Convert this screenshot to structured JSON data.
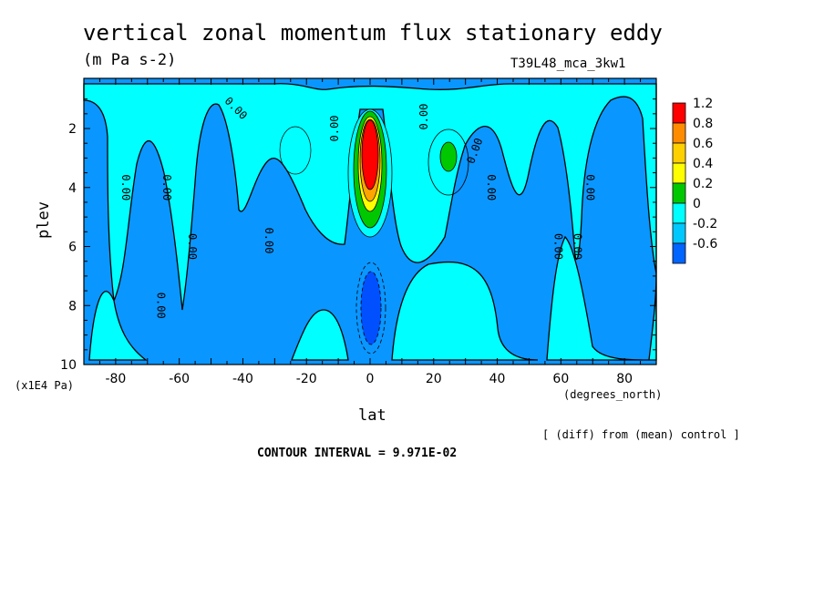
{
  "title": "vertical zonal momentum flux stationary eddy",
  "units": "(m Pa s-2)",
  "run_label": "T39L48_mca_3kw1",
  "comparison_note": "[ (diff) from (mean) control ]",
  "contour_interval_text": "CONTOUR INTERVAL = 9.971E-02",
  "chart_data": {
    "type": "heatmap",
    "xlabel": "lat",
    "xunit": "(degrees_north)",
    "ylabel": "plev",
    "yunit": "(x1E4 Pa)",
    "xlim": [
      -90,
      90
    ],
    "ylim": [
      10,
      0.3
    ],
    "x_ticks": [
      "-80",
      "-60",
      "-40",
      "-20",
      "0",
      "20",
      "40",
      "60",
      "80"
    ],
    "y_ticks": [
      "2",
      "4",
      "6",
      "8",
      "10"
    ],
    "colorbar": {
      "levels": [
        "1.2",
        "0.8",
        "0.6",
        "0.4",
        "0.2",
        "0",
        "-0.2",
        "-0.6"
      ],
      "colors": [
        "#ff0000",
        "#ff8c00",
        "#ffd000",
        "#ffff00",
        "#00c800",
        "#00ffff",
        "#00c8ff",
        "#0064ff",
        "#0050ff"
      ]
    },
    "contour_labels": [
      "0.00",
      "0.00",
      "0.00",
      "0.00",
      "0.00",
      "0.00",
      "0.00",
      "0.00",
      "0.00",
      "0.00",
      "0.00",
      "0.00",
      "0.00"
    ],
    "features": [
      {
        "name": "equatorial positive maximum",
        "lat": 0,
        "plev": 2.8,
        "value": 1.2
      },
      {
        "name": "equatorial negative minimum",
        "lat": 0,
        "plev": 7.8,
        "value": -0.6
      },
      {
        "name": "secondary positive maximum",
        "lat": 25,
        "plev": 2.8,
        "value": 0.3
      }
    ]
  }
}
